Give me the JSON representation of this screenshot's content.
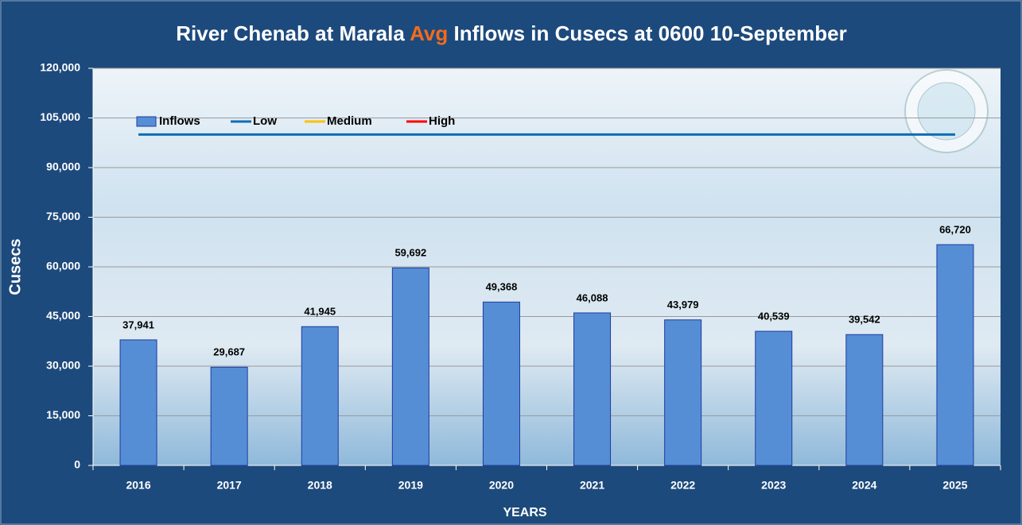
{
  "chart_data": {
    "type": "bar",
    "title": [
      "River Chenab at Marala",
      "Avg",
      "Inflows in Cusecs at 0600  10-September"
    ],
    "title_highlight_color": "#f26b1d",
    "xlabel": "YEARS",
    "ylabel": "Cusecs",
    "categories": [
      "2016",
      "2017",
      "2018",
      "2019",
      "2020",
      "2021",
      "2022",
      "2023",
      "2024",
      "2025"
    ],
    "series": [
      {
        "name": "Inflows",
        "type": "bar",
        "color": "#558ed5",
        "values": [
          37941,
          29687,
          41945,
          59692,
          49368,
          46088,
          43979,
          40539,
          39542,
          66720
        ],
        "value_labels": [
          "37,941",
          "29,687",
          "41,945",
          "59,692",
          "49,368",
          "46,088",
          "43,979",
          "40,539",
          "39,542",
          "66,720"
        ]
      },
      {
        "name": "Low",
        "type": "line",
        "color": "#0f6cb5",
        "values": [
          100000,
          100000,
          100000,
          100000,
          100000,
          100000,
          100000,
          100000,
          100000,
          100000
        ]
      },
      {
        "name": "Medium",
        "type": "line",
        "color": "#ffc000",
        "values": [
          null,
          null,
          null,
          null,
          null,
          null,
          null,
          null,
          null,
          null
        ]
      },
      {
        "name": "High",
        "type": "line",
        "color": "#ff0000",
        "values": [
          null,
          null,
          null,
          null,
          null,
          null,
          null,
          null,
          null,
          null
        ]
      }
    ],
    "ylim": [
      0,
      120000
    ],
    "yticks": [
      0,
      {
        "value": 15000,
        "label": "15,000"
      },
      {
        "value": 30000,
        "label": "30,000"
      },
      {
        "value": 45000,
        "label": "45,000"
      },
      {
        "value": 60000,
        "label": "60,000"
      },
      {
        "value": 75000,
        "label": "75,000"
      },
      {
        "value": 90000,
        "label": "90,000"
      },
      {
        "value": 105000,
        "label": "105,000"
      },
      {
        "value": 120000,
        "label": "120,000"
      }
    ],
    "grid": true,
    "legend": "top-left"
  }
}
